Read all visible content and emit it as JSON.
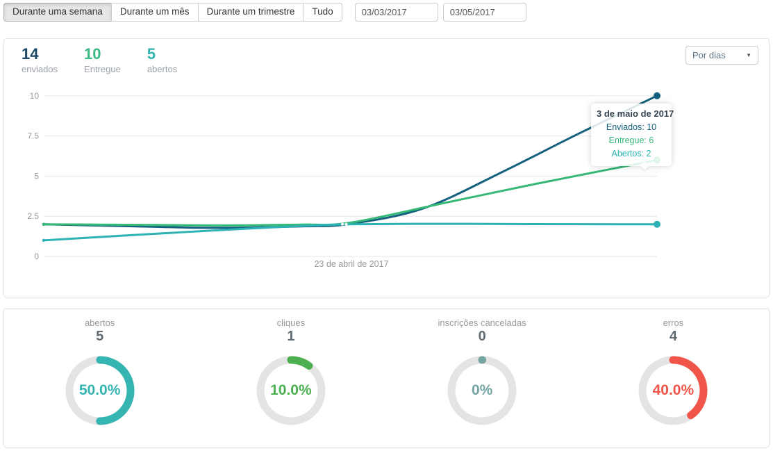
{
  "toolbar": {
    "range_buttons": [
      {
        "label": "Durante uma semana",
        "active": true
      },
      {
        "label": "Durante um mês",
        "active": false
      },
      {
        "label": "Durante um trimestre",
        "active": false
      },
      {
        "label": "Tudo",
        "active": false
      }
    ],
    "date_from": "03/03/2017",
    "date_to": "03/05/2017"
  },
  "summary_card": {
    "stats": [
      {
        "value": "14",
        "label": "enviados",
        "color": "#1b4965"
      },
      {
        "value": "10",
        "label": "Entregue",
        "color": "#38b884"
      },
      {
        "value": "5",
        "label": "abertos",
        "color": "#33b3b0"
      }
    ],
    "group_by_select": {
      "value": "Por dias",
      "arrow": "▼"
    }
  },
  "chart_data": {
    "type": "line",
    "ylim": [
      0,
      10
    ],
    "yticks": [
      0,
      2.5,
      5,
      7.5,
      10
    ],
    "ytick_labels": [
      "0",
      "2.5",
      "5",
      "7.5",
      "10"
    ],
    "grid": true,
    "x_axis_tick_label": "23 de abril de 2017",
    "series": [
      {
        "name": "Enviados",
        "color": "#14607f",
        "end_value": 10,
        "points": [
          [
            0,
            2
          ],
          [
            0.14,
            1.88
          ],
          [
            0.28,
            1.78
          ],
          [
            0.42,
            1.87
          ],
          [
            0.5,
            2.03
          ],
          [
            0.62,
            3.0
          ],
          [
            0.75,
            5.3
          ],
          [
            0.87,
            7.6
          ],
          [
            1,
            10
          ]
        ]
      },
      {
        "name": "Entregue",
        "color": "#36b877",
        "end_value": 6,
        "points": [
          [
            0,
            2
          ],
          [
            0.14,
            1.97
          ],
          [
            0.28,
            1.93
          ],
          [
            0.42,
            1.98
          ],
          [
            0.5,
            2.1
          ],
          [
            0.65,
            3.3
          ],
          [
            0.8,
            4.5
          ],
          [
            1,
            6
          ]
        ]
      },
      {
        "name": "Abertos",
        "color": "#2db3b3",
        "end_value": 2,
        "points": [
          [
            0,
            1
          ],
          [
            0.14,
            1.32
          ],
          [
            0.28,
            1.62
          ],
          [
            0.42,
            1.9
          ],
          [
            0.5,
            2
          ],
          [
            0.65,
            2.03
          ],
          [
            0.8,
            2.01
          ],
          [
            1,
            2
          ]
        ]
      }
    ],
    "tooltip": {
      "title": "3 de maio de 2017",
      "rows": [
        {
          "text": "Enviados: 10",
          "color": "#14607f"
        },
        {
          "text": "Entregue: 6",
          "color": "#36b877"
        },
        {
          "text": "Abertos: 2",
          "color": "#2db3b3"
        }
      ]
    }
  },
  "gauges": [
    {
      "label": "abertos",
      "count": "5",
      "percent": 50,
      "percent_label": "50.0%",
      "color": "#35b5b2"
    },
    {
      "label": "cliques",
      "count": "1",
      "percent": 10,
      "percent_label": "10.0%",
      "color": "#4caf50"
    },
    {
      "label": "inscrições canceladas",
      "count": "0",
      "percent": 0,
      "percent_label": "0%",
      "color": "#74a5a2"
    },
    {
      "label": "erros",
      "count": "4",
      "percent": 40,
      "percent_label": "40.0%",
      "color": "#f05549"
    }
  ]
}
